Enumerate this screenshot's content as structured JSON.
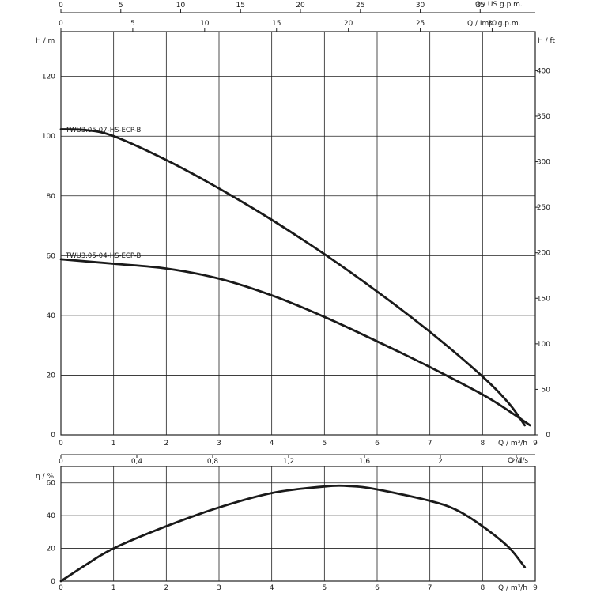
{
  "chart_data": [
    {
      "type": "line",
      "title": "",
      "x_axis": {
        "unit_label": "Q / m³/h",
        "range": [
          0,
          9
        ],
        "ticks": [
          "0",
          "1",
          "2",
          "3",
          "4",
          "5",
          "6",
          "7",
          "8",
          "9"
        ]
      },
      "secondary_x_axes": [
        {
          "unit_label": "Q / US g.p.m.",
          "range": [
            0,
            39.6
          ],
          "ticks": [
            "0",
            "5",
            "10",
            "15",
            "20",
            "25",
            "30",
            "35"
          ]
        },
        {
          "unit_label": "Q / Imp. g.p.m.",
          "range": [
            0,
            33
          ],
          "ticks": [
            "0",
            "5",
            "10",
            "15",
            "20",
            "25",
            "30"
          ]
        }
      ],
      "y_axis": {
        "unit_label": "H / m",
        "range": [
          0,
          135
        ],
        "ticks": [
          "0",
          "20",
          "40",
          "60",
          "80",
          "100",
          "120"
        ]
      },
      "secondary_y_axis": {
        "unit_label": "H / ft",
        "range": [
          0,
          442.9
        ],
        "ticks": [
          "0",
          "50",
          "100",
          "150",
          "200",
          "250",
          "300",
          "350",
          "400"
        ]
      },
      "grid": true,
      "series": [
        {
          "name": "TWU3.05-07-HS-ECP-B",
          "x": [
            0,
            0.5,
            1,
            2,
            3,
            4,
            5,
            6,
            7,
            8,
            8.5,
            8.8
          ],
          "y": [
            102.3,
            102,
            100,
            92,
            82.5,
            72,
            60.5,
            48,
            34.5,
            19.5,
            10.5,
            3.2
          ]
        },
        {
          "name": "TWU3.05-04-HS-ECP-B",
          "x": [
            0,
            1,
            2,
            3,
            4,
            5,
            6,
            7,
            8,
            8.5,
            8.9
          ],
          "y": [
            58.8,
            57.3,
            55.7,
            52.3,
            46.7,
            39.5,
            31.3,
            22.7,
            13.5,
            8,
            3.2
          ]
        }
      ]
    },
    {
      "type": "line",
      "x_axis": {
        "unit_label": "Q / m³/h",
        "range": [
          0,
          9
        ],
        "ticks": [
          "0",
          "1",
          "2",
          "3",
          "4",
          "5",
          "6",
          "7",
          "8",
          "9"
        ]
      },
      "secondary_x_axis": {
        "unit_label": "Q / l/s",
        "range": [
          0,
          2.5
        ],
        "ticks": [
          "0",
          "0,4",
          "0,8",
          "1,2",
          "1,6",
          "2",
          "2,4"
        ]
      },
      "y_axis": {
        "unit_label": "η / %",
        "range": [
          0,
          70
        ],
        "ticks": [
          "0",
          "20",
          "40",
          "60"
        ]
      },
      "grid": true,
      "series": [
        {
          "x": [
            0,
            0.5,
            1,
            2,
            3,
            4,
            5,
            5.5,
            6,
            7,
            7.5,
            8,
            8.5,
            8.8
          ],
          "y": [
            0,
            10.5,
            20,
            33.5,
            45,
            53.8,
            57.8,
            58,
            56,
            49,
            43.5,
            33.5,
            20.5,
            8.5
          ]
        }
      ]
    }
  ]
}
